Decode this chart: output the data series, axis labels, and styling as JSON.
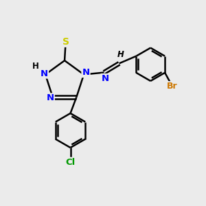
{
  "background_color": "#ebebeb",
  "bond_color": "#000000",
  "atom_colors": {
    "N": "#0000ff",
    "S": "#cccc00",
    "Br": "#cc7700",
    "Cl": "#009900",
    "H": "#000000",
    "C": "#000000"
  }
}
